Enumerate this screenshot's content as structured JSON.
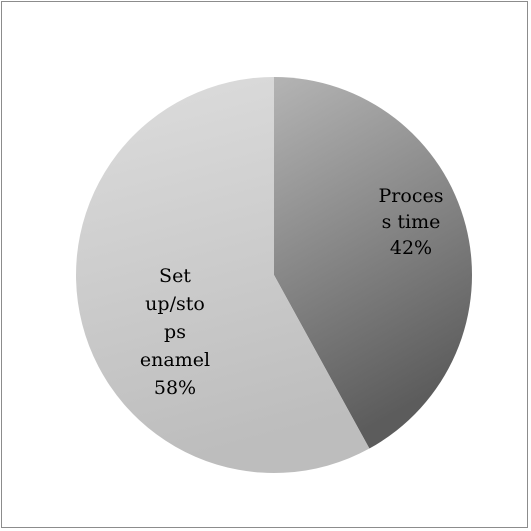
{
  "chart_data": {
    "type": "pie",
    "title": "",
    "slices": [
      {
        "category": "Process time",
        "value": 42,
        "label_lines": [
          "Proces",
          "s time",
          "42%"
        ],
        "gradient": [
          "#b4b4b4",
          "#5c5c5c"
        ]
      },
      {
        "category": "Set up/stops enamel",
        "value": 58,
        "label_lines": [
          "Set",
          "up/sto",
          "ps",
          "enamel",
          "58%"
        ],
        "gradient": [
          "#dddddd",
          "#bdbdbd"
        ]
      }
    ],
    "start_angle_deg": 0,
    "direction": "clockwise",
    "legend": "none"
  }
}
